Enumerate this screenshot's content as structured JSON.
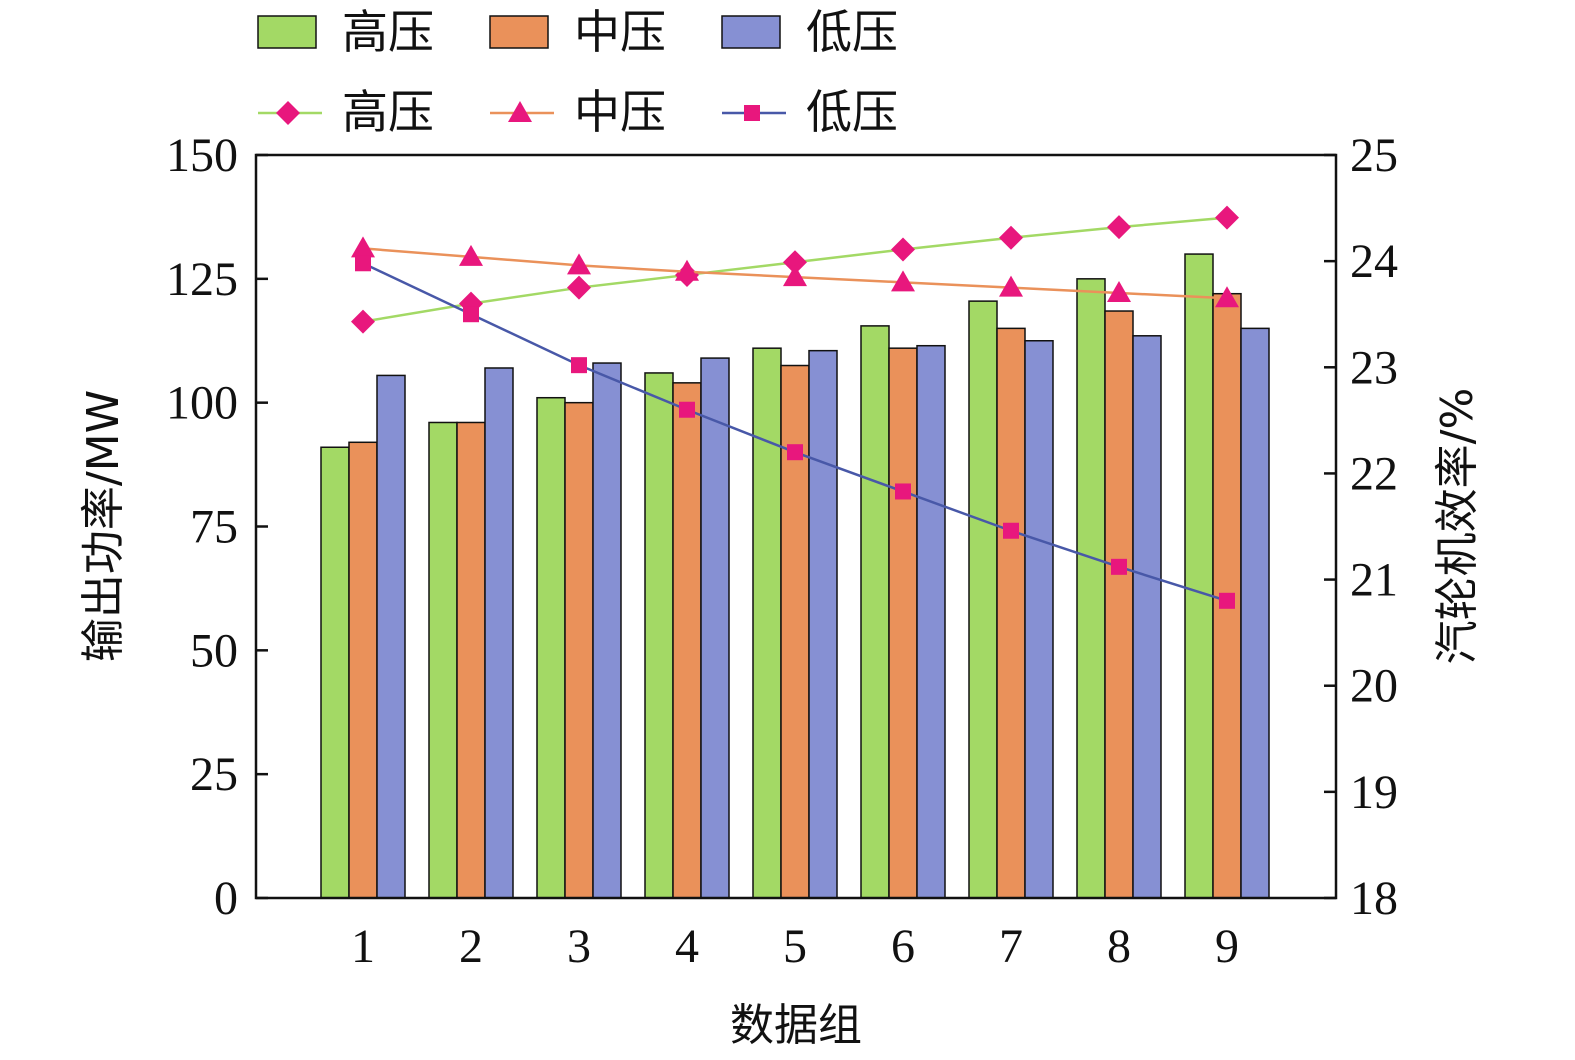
{
  "chart_data": {
    "type": "bar",
    "categories": [
      "1",
      "2",
      "3",
      "4",
      "5",
      "6",
      "7",
      "8",
      "9"
    ],
    "xlabel": "数据组",
    "ylabel": "输出功率/MW",
    "y2label": "汽轮机效率/%",
    "ylim": [
      0,
      150
    ],
    "yticks": [
      "0",
      "25",
      "50",
      "75",
      "100",
      "125",
      "150"
    ],
    "y2lim": [
      18,
      25
    ],
    "y2ticks": [
      "18",
      "19",
      "20",
      "21",
      "22",
      "23",
      "24",
      "25"
    ],
    "grid": false,
    "legend_position": "top",
    "bar_series": [
      {
        "name": "高压",
        "color": "#a3d965",
        "values": [
          91,
          96,
          101,
          106,
          111,
          115.5,
          120.5,
          125,
          130
        ]
      },
      {
        "name": "中压",
        "color": "#ea915a",
        "values": [
          92,
          96,
          100,
          104,
          107.5,
          111,
          115,
          118.5,
          122
        ]
      },
      {
        "name": "低压",
        "color": "#8690d3",
        "values": [
          105.5,
          107,
          108,
          109,
          110.5,
          111.5,
          112.5,
          113.5,
          115
        ]
      }
    ],
    "line_series": [
      {
        "name": "高压",
        "line_color": "#a3d965",
        "marker": "diamond",
        "marker_color": "#e8177d",
        "values": [
          23.43,
          23.6,
          23.75,
          23.87,
          23.99,
          24.11,
          24.22,
          24.32,
          24.41
        ]
      },
      {
        "name": "中压",
        "line_color": "#ea915a",
        "marker": "triangle",
        "marker_color": "#e8177d",
        "values": [
          24.12,
          24.04,
          23.96,
          23.9,
          23.85,
          23.8,
          23.75,
          23.7,
          23.65
        ]
      },
      {
        "name": "低压",
        "line_color": "#4858a8",
        "marker": "square",
        "marker_color": "#e8177d",
        "values": [
          23.98,
          23.5,
          23.02,
          22.6,
          22.2,
          21.83,
          21.46,
          21.12,
          20.8
        ]
      }
    ]
  }
}
